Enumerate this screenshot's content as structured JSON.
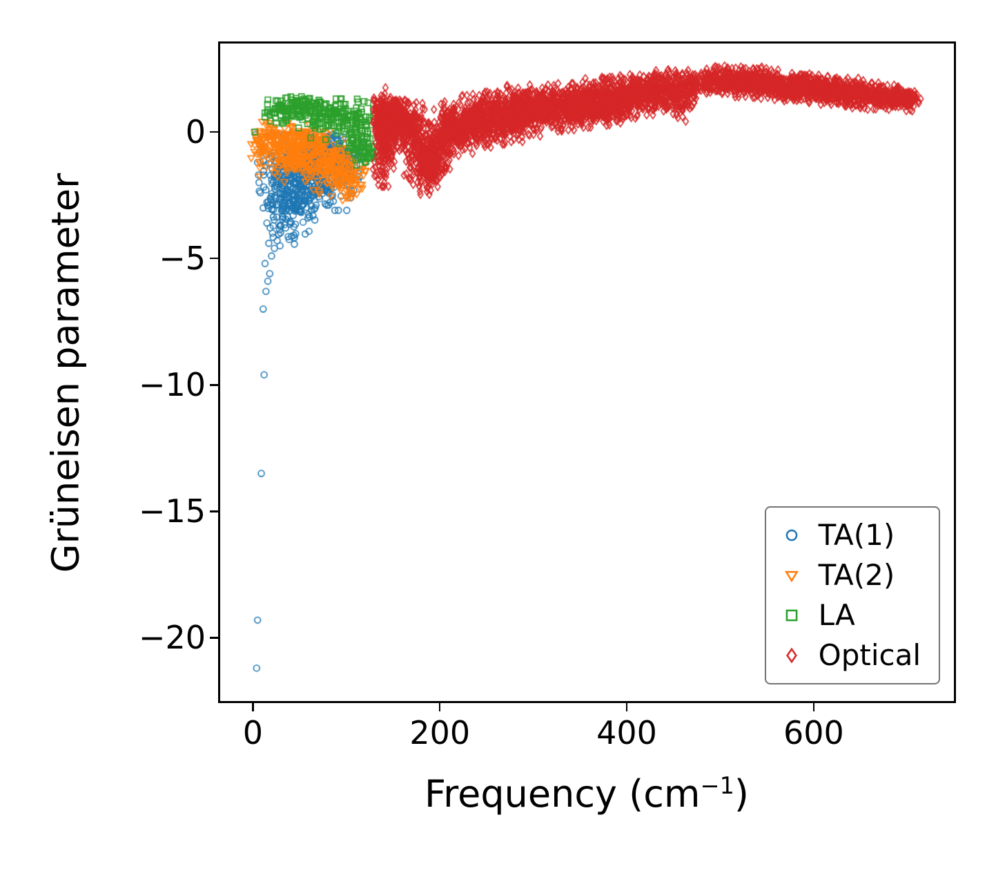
{
  "chart_data": {
    "type": "scatter",
    "title": "",
    "xlabel_prefix": "Frequency (cm",
    "xlabel_sup": "−1",
    "xlabel_suffix": ")",
    "ylabel": "Grüneisen parameter",
    "xlim": [
      -35,
      750
    ],
    "ylim": [
      -22.5,
      3.5
    ],
    "grid": false,
    "legend_position": "lower right",
    "xticks": [
      {
        "value": 0,
        "label": "0"
      },
      {
        "value": 200,
        "label": "200"
      },
      {
        "value": 400,
        "label": "400"
      },
      {
        "value": 600,
        "label": "600"
      }
    ],
    "yticks": [
      {
        "value": 0,
        "label": "0"
      },
      {
        "value": -5,
        "label": "−5"
      },
      {
        "value": -10,
        "label": "−10"
      },
      {
        "value": -15,
        "label": "−15"
      },
      {
        "value": -20,
        "label": "−20"
      }
    ],
    "cluster_format": [
      "n",
      "cx",
      "cy",
      "sigma_x",
      "sigma_y"
    ],
    "series": [
      {
        "name": "TA(1)",
        "marker": "circle",
        "color": "#1f77b4",
        "points": [
          [
            3,
            -0.1
          ],
          [
            4,
            -21.2
          ],
          [
            5,
            -19.3
          ],
          [
            9,
            -13.5
          ],
          [
            12,
            -9.6
          ],
          [
            11,
            -7.0
          ],
          [
            14,
            -6.3
          ],
          [
            16,
            -5.9
          ],
          [
            18,
            -5.6
          ],
          [
            13,
            -5.2
          ],
          [
            20,
            -4.9
          ],
          [
            23,
            -4.6
          ],
          [
            17,
            -4.4
          ],
          [
            26,
            -4.3
          ],
          [
            29,
            -4.5
          ],
          [
            21,
            -4.0
          ],
          [
            15,
            -3.6
          ],
          [
            11,
            -3.0
          ],
          [
            8,
            -2.4
          ],
          [
            6,
            -1.7
          ],
          [
            5,
            -1.2
          ],
          [
            7,
            -0.8
          ],
          [
            10,
            -0.5
          ]
        ],
        "clusters": [
          [
            360,
            62,
            -1.6,
            22,
            0.65
          ],
          [
            90,
            45,
            -2.6,
            13,
            0.55
          ],
          [
            130,
            72,
            -0.8,
            20,
            0.3
          ],
          [
            50,
            38,
            -3.4,
            10,
            0.45
          ],
          [
            60,
            95,
            -1.4,
            9,
            0.4
          ],
          [
            40,
            25,
            -1.8,
            8,
            0.7
          ]
        ]
      },
      {
        "name": "TA(2)",
        "marker": "triangle-down",
        "color": "#ff7f0e",
        "points": [
          [
            2,
            0.0
          ],
          [
            100,
            -2.6
          ],
          [
            105,
            -2.4
          ],
          [
            96,
            -2.7
          ]
        ],
        "clusters": [
          [
            240,
            58,
            -1.0,
            22,
            0.45
          ],
          [
            90,
            85,
            -1.5,
            14,
            0.45
          ],
          [
            70,
            30,
            -0.5,
            12,
            0.35
          ],
          [
            50,
            102,
            -1.9,
            8,
            0.4
          ],
          [
            70,
            45,
            -0.15,
            17,
            0.22
          ],
          [
            30,
            12,
            -0.4,
            6,
            0.35
          ]
        ]
      },
      {
        "name": "LA",
        "marker": "square",
        "color": "#2ca02c",
        "points": [
          [
            2,
            0.0
          ],
          [
            35,
            1.35
          ],
          [
            52,
            1.4
          ],
          [
            60,
            1.3
          ],
          [
            47,
            1.25
          ],
          [
            24,
            0.55
          ],
          [
            120,
            -1.2
          ],
          [
            125,
            -1.0
          ]
        ],
        "clusters": [
          [
            130,
            68,
            0.75,
            24,
            0.28
          ],
          [
            80,
            92,
            0.5,
            16,
            0.35
          ],
          [
            60,
            112,
            -0.1,
            9,
            0.5
          ],
          [
            35,
            121,
            -0.8,
            6,
            0.35
          ],
          [
            45,
            46,
            1.05,
            13,
            0.18
          ],
          [
            25,
            30,
            0.8,
            8,
            0.25
          ]
        ]
      },
      {
        "name": "Optical",
        "marker": "diamond",
        "color": "#d62728",
        "points": [
          [
            272,
            1.85
          ],
          [
            265,
            1.5
          ],
          [
            129,
            0.9
          ],
          [
            131,
            -1.4
          ],
          [
            178,
            -2.15
          ],
          [
            186,
            -2.2
          ],
          [
            192,
            -2.05
          ],
          [
            169,
            -1.9
          ]
        ],
        "clusters": [
          [
            220,
            140,
            -0.2,
            5,
            0.85
          ],
          [
            90,
            137,
            0.6,
            4,
            0.35
          ],
          [
            60,
            150,
            0.85,
            5,
            0.28
          ],
          [
            120,
            152,
            0.3,
            6,
            0.4
          ],
          [
            120,
            161,
            0.3,
            7,
            0.42
          ],
          [
            130,
            170,
            0.05,
            8,
            0.5
          ],
          [
            150,
            180,
            -0.85,
            8,
            0.65
          ],
          [
            100,
            190,
            -1.55,
            7,
            0.4
          ],
          [
            80,
            197,
            -0.85,
            6,
            0.5
          ],
          [
            130,
            206,
            -0.05,
            8,
            0.5
          ],
          [
            140,
            216,
            0.15,
            8,
            0.5
          ],
          [
            140,
            228,
            0.3,
            8,
            0.5
          ],
          [
            140,
            242,
            0.4,
            8,
            0.48
          ],
          [
            140,
            256,
            0.55,
            8,
            0.45
          ],
          [
            140,
            270,
            0.65,
            8,
            0.45
          ],
          [
            140,
            284,
            0.75,
            8,
            0.45
          ],
          [
            140,
            298,
            0.85,
            8,
            0.45
          ],
          [
            130,
            312,
            0.9,
            8,
            0.42
          ],
          [
            130,
            326,
            0.95,
            8,
            0.4
          ],
          [
            130,
            340,
            1.0,
            8,
            0.4
          ],
          [
            130,
            355,
            1.1,
            8,
            0.4
          ],
          [
            130,
            370,
            1.2,
            8,
            0.4
          ],
          [
            70,
            372,
            0.72,
            13,
            0.2
          ],
          [
            130,
            385,
            1.3,
            8,
            0.38
          ],
          [
            130,
            400,
            1.4,
            8,
            0.38
          ],
          [
            120,
            415,
            1.5,
            8,
            0.36
          ],
          [
            120,
            430,
            1.65,
            7,
            0.34
          ],
          [
            110,
            444,
            1.55,
            7,
            0.4
          ],
          [
            90,
            456,
            1.35,
            6,
            0.42
          ],
          [
            80,
            468,
            1.8,
            5,
            0.28
          ],
          [
            120,
            490,
            2.0,
            7,
            0.26
          ],
          [
            130,
            508,
            2.02,
            8,
            0.26
          ],
          [
            130,
            526,
            1.98,
            8,
            0.26
          ],
          [
            130,
            544,
            1.92,
            8,
            0.26
          ],
          [
            130,
            562,
            1.86,
            8,
            0.26
          ],
          [
            130,
            580,
            1.8,
            8,
            0.25
          ],
          [
            130,
            598,
            1.73,
            8,
            0.25
          ],
          [
            130,
            616,
            1.66,
            8,
            0.25
          ],
          [
            120,
            634,
            1.58,
            8,
            0.24
          ],
          [
            120,
            652,
            1.5,
            8,
            0.24
          ],
          [
            110,
            670,
            1.42,
            8,
            0.23
          ],
          [
            100,
            688,
            1.34,
            7,
            0.22
          ],
          [
            80,
            703,
            1.27,
            5,
            0.2
          ]
        ]
      }
    ]
  }
}
